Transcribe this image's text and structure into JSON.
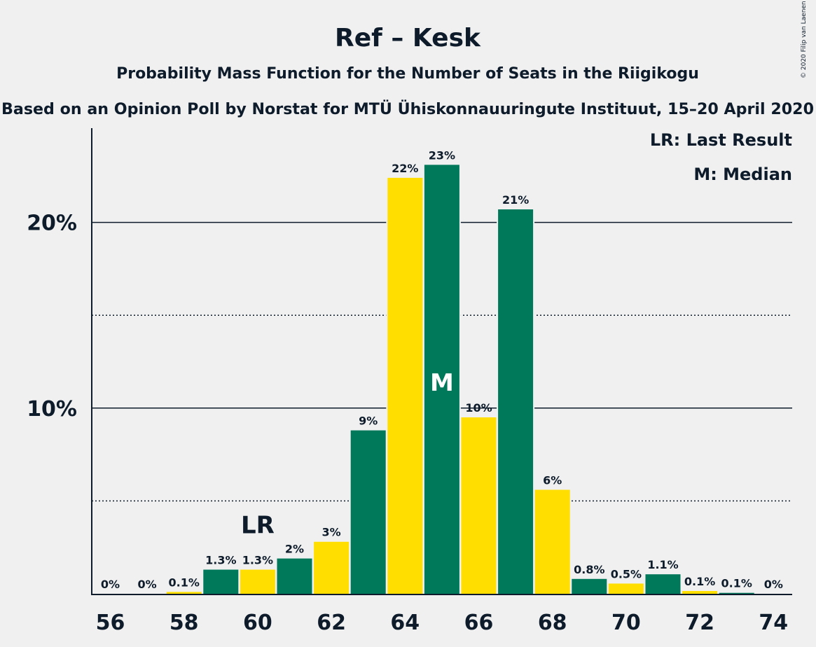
{
  "title": "Ref – Kesk",
  "subtitle": "Probability Mass Function for the Number of Seats in the Riigikogu",
  "subtitle2": "Based on an Opinion Poll by Norstat for MTÜ Ühiskonnauuringute Instituut, 15–20 April 2020",
  "copyright": "© 2020 Filip van Laenen",
  "legend": {
    "lr": "LR: Last Result",
    "m": "M: Median"
  },
  "colors": {
    "green": "#00785a",
    "yellow": "#ffde00",
    "text": "#0d1b2a",
    "background": "#f0f0f0"
  },
  "chart_data": {
    "type": "bar",
    "x": [
      56,
      57,
      58,
      59,
      60,
      61,
      62,
      63,
      64,
      65,
      66,
      67,
      68,
      69,
      70,
      71,
      72,
      73,
      74
    ],
    "values": [
      0,
      0,
      0.1,
      1.3,
      1.3,
      1.9,
      2.8,
      8.8,
      22.4,
      23.1,
      9.5,
      20.7,
      5.6,
      0.8,
      0.55,
      1.05,
      0.15,
      0.05,
      0
    ],
    "labels": [
      "0%",
      "0%",
      "0.1%",
      "1.3%",
      "1.3%",
      "2%",
      "3%",
      "9%",
      "22%",
      "23%",
      "10%",
      "21%",
      "6%",
      "0.8%",
      "0.5%",
      "1.1%",
      "0.1%",
      "0.1%",
      "0%"
    ],
    "bar_colors": [
      "green",
      "yellow",
      "yellow",
      "green",
      "yellow",
      "green",
      "yellow",
      "green",
      "yellow",
      "green",
      "yellow",
      "green",
      "yellow",
      "green",
      "yellow",
      "green",
      "yellow",
      "green",
      "yellow"
    ],
    "xticks": [
      "56",
      "58",
      "60",
      "62",
      "64",
      "66",
      "68",
      "70",
      "72",
      "74"
    ],
    "yticks": [
      "10%",
      "20%"
    ],
    "ylim": [
      0,
      25
    ],
    "gridlines_solid": [
      10,
      20
    ],
    "gridlines_dotted": [
      5,
      15
    ],
    "last_result": {
      "seat": 60,
      "label": "LR"
    },
    "median": {
      "seat": 65,
      "label": "M"
    }
  }
}
